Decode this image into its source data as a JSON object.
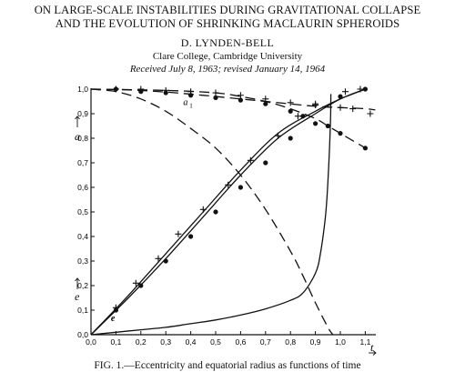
{
  "header": {
    "title_line1": "ON LARGE-SCALE INSTABILITIES DURING GRAVITATIONAL COLLAPSE",
    "title_line2": "AND THE EVOLUTION OF SHRINKING MACLAURIN SPHEROIDS",
    "author": "D. LYNDEN-BELL",
    "affiliation": "Clare College, Cambridge University",
    "received": "Received July 8, 1963; revised January 14, 1964"
  },
  "caption": "FIG. 1.—Eccentricity and equatorial radius as functions of time",
  "chart_data": {
    "type": "line",
    "xlabel": "t",
    "ylabel_top": "a",
    "ylabel_bottom": "e",
    "xlim": [
      0,
      1.14
    ],
    "ylim": [
      0,
      1.0
    ],
    "x_ticks": [
      "0,0",
      "0,1",
      "0,2",
      "0,3",
      "0,4",
      "0,5",
      "0,6",
      "0,7",
      "0,8",
      "0,9",
      "1,0",
      "1,1"
    ],
    "y_ticks": [
      "0,0",
      "0,1",
      "0,2",
      "0,3",
      "0,4",
      "0,5",
      "0,6",
      "0,7",
      "0,8",
      "0,9",
      "1,0"
    ],
    "annotations": [
      {
        "text": "a",
        "x": 0.37,
        "y": 0.935
      },
      {
        "text": "1",
        "x": 0.395,
        "y": 0.925
      },
      {
        "text": "e",
        "x": 0.08,
        "y": 0.055
      }
    ],
    "series": [
      {
        "style": "dashed",
        "x": [
          0.0,
          0.15,
          0.3,
          0.45,
          0.6,
          0.75,
          0.9,
          1.0,
          1.1,
          1.14
        ],
        "y": [
          1.0,
          0.997,
          0.988,
          0.975,
          0.96,
          0.945,
          0.93,
          0.925,
          0.92,
          0.915
        ]
      },
      {
        "style": "dashed",
        "x": [
          0.0,
          0.1,
          0.2,
          0.3,
          0.4,
          0.5,
          0.6,
          0.7,
          0.8,
          0.85,
          0.9,
          0.95,
          0.97
        ],
        "y": [
          1.0,
          0.99,
          0.96,
          0.91,
          0.84,
          0.76,
          0.65,
          0.51,
          0.34,
          0.24,
          0.13,
          0.03,
          0.0
        ]
      },
      {
        "style": "dashed",
        "x": [
          0.0,
          0.3,
          0.5,
          0.6,
          0.7,
          0.8,
          0.9,
          0.95,
          1.0,
          1.05,
          1.1,
          1.12
        ],
        "y": [
          1.0,
          0.995,
          0.985,
          0.97,
          0.95,
          0.92,
          0.88,
          0.85,
          0.82,
          0.79,
          0.76,
          0.74
        ]
      },
      {
        "style": "solid",
        "x": [
          0.0,
          0.15,
          0.3,
          0.45,
          0.6,
          0.75,
          0.9,
          1.0,
          1.1
        ],
        "y": [
          0.0,
          0.15,
          0.31,
          0.48,
          0.65,
          0.8,
          0.9,
          0.96,
          1.0
        ]
      },
      {
        "style": "solid",
        "x": [
          0.0,
          0.15,
          0.3,
          0.45,
          0.6,
          0.75,
          0.9,
          1.0,
          1.1
        ],
        "y": [
          0.0,
          0.16,
          0.33,
          0.5,
          0.67,
          0.82,
          0.91,
          0.96,
          1.0
        ]
      },
      {
        "style": "solid",
        "x": [
          0.0,
          0.1,
          0.2,
          0.3,
          0.4,
          0.5,
          0.6,
          0.7,
          0.8,
          0.85,
          0.9,
          0.92,
          0.94,
          0.95,
          0.96,
          0.962
        ],
        "y": [
          0.0,
          0.01,
          0.02,
          0.03,
          0.045,
          0.06,
          0.08,
          0.105,
          0.14,
          0.17,
          0.25,
          0.33,
          0.48,
          0.62,
          0.85,
          0.98
        ]
      },
      {
        "style": "plus-markers",
        "x": [
          0.1,
          0.18,
          0.27,
          0.35,
          0.45,
          0.55,
          0.64,
          0.75,
          0.83,
          0.9,
          1.02,
          1.08
        ],
        "y": [
          0.11,
          0.21,
          0.31,
          0.41,
          0.51,
          0.61,
          0.71,
          0.81,
          0.89,
          0.94,
          0.99,
          1.0
        ]
      },
      {
        "style": "dot-markers",
        "x": [
          0.1,
          0.2,
          0.3,
          0.4,
          0.5,
          0.6,
          0.7,
          0.8,
          1.0,
          1.1
        ],
        "y": [
          0.1,
          0.2,
          0.3,
          0.4,
          0.5,
          0.6,
          0.7,
          0.8,
          0.97,
          1.0
        ]
      },
      {
        "style": "plus-markers",
        "x": [
          0.1,
          0.2,
          0.3,
          0.4,
          0.5,
          0.6,
          0.7,
          0.8,
          0.9,
          1.0,
          1.05,
          1.12
        ],
        "y": [
          1.0,
          1.0,
          0.995,
          0.99,
          0.985,
          0.975,
          0.96,
          0.945,
          0.935,
          0.925,
          0.92,
          0.9
        ]
      },
      {
        "style": "dot-markers",
        "x": [
          0.1,
          0.2,
          0.3,
          0.4,
          0.5,
          0.6,
          0.7,
          0.8,
          0.85,
          0.9,
          0.95,
          1.0,
          1.1
        ],
        "y": [
          1.0,
          0.99,
          0.985,
          0.975,
          0.965,
          0.955,
          0.94,
          0.91,
          0.89,
          0.86,
          0.85,
          0.82,
          0.76
        ]
      }
    ]
  }
}
